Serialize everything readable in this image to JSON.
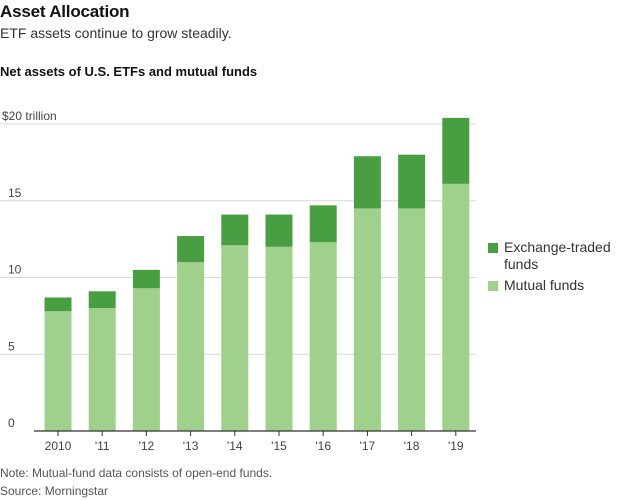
{
  "header": {
    "title": "Asset Allocation",
    "subtitle": "ETF assets continue to grow steadily.",
    "chart_heading": "Net assets of U.S. ETFs and mutual funds"
  },
  "footer": {
    "note": "Note: Mutual-fund data consists of open-end funds.",
    "source": "Source: Morningstar"
  },
  "colors": {
    "etf": "#4a9e42",
    "mutual": "#9fd08c",
    "grid": "#d9d9d9",
    "axis": "#333333"
  },
  "chart_data": {
    "type": "bar",
    "stacked": true,
    "categories": [
      "2010",
      "'11",
      "'12",
      "'13",
      "'14",
      "'15",
      "'16",
      "'17",
      "'18",
      "'19"
    ],
    "series": [
      {
        "name": "Mutual funds",
        "values": [
          7.8,
          8.0,
          9.3,
          11.0,
          12.1,
          12.0,
          12.3,
          14.5,
          14.5,
          16.1
        ],
        "color": "#9fd08c"
      },
      {
        "name": "Exchange-traded funds",
        "values": [
          0.9,
          1.1,
          1.2,
          1.7,
          2.0,
          2.1,
          2.4,
          3.4,
          3.5,
          4.3
        ],
        "color": "#4a9e42"
      }
    ],
    "legend_labels": [
      "Exchange-traded funds",
      "Mutual funds"
    ],
    "yticks": [
      "0",
      "5",
      "10",
      "15",
      "$20 trillion"
    ],
    "ytick_values": [
      0,
      5,
      10,
      15,
      20
    ],
    "ylim": [
      0,
      20.5
    ],
    "xlabel": "",
    "ylabel": "",
    "grid": true,
    "legend_position": "right"
  }
}
